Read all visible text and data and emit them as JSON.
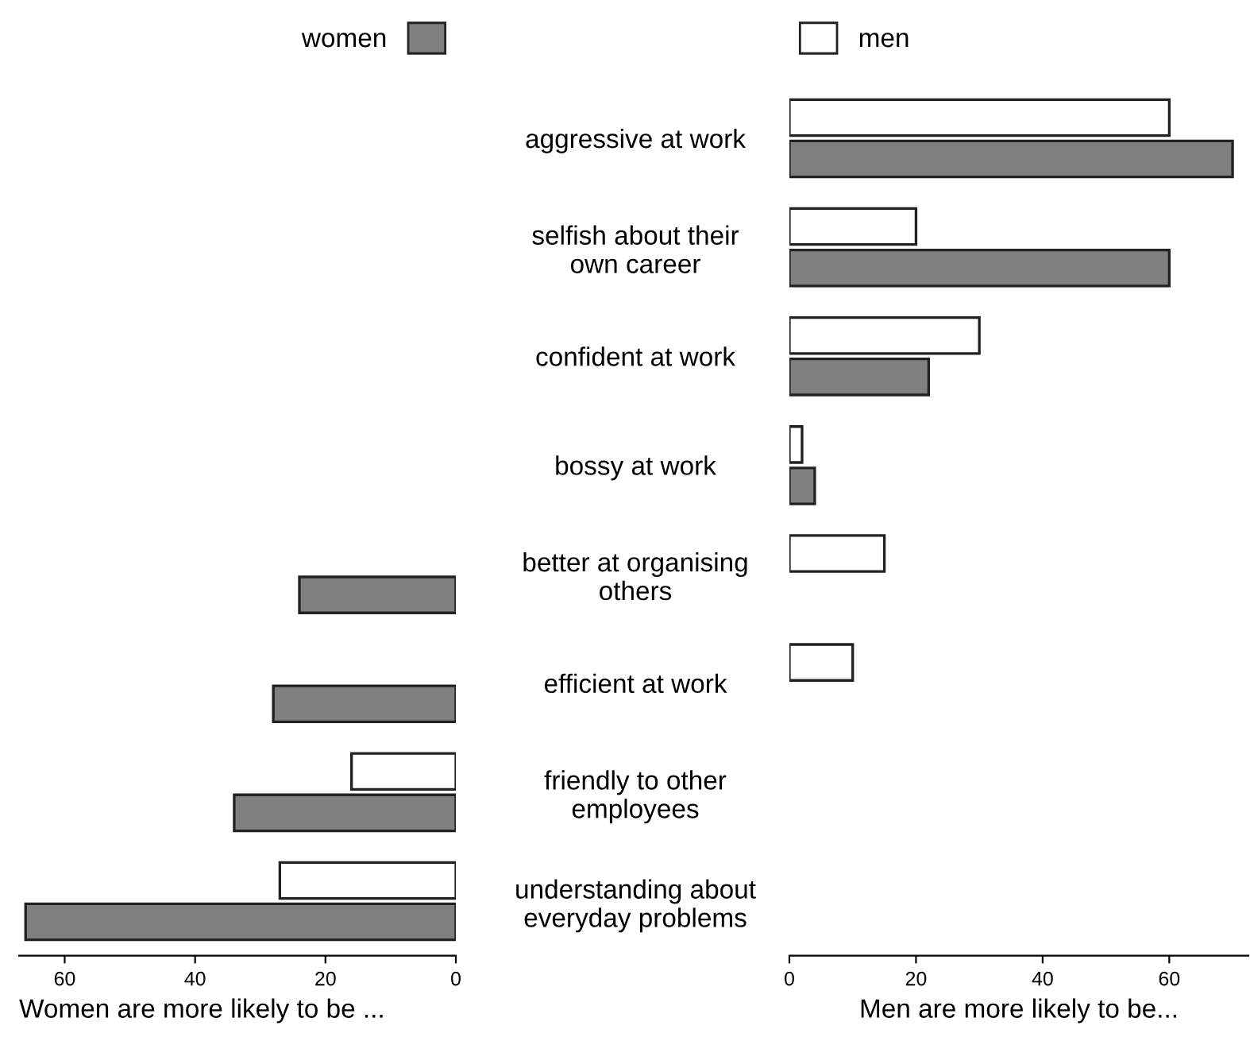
{
  "chart_data": [
    {
      "type": "bar",
      "orientation": "horizontal",
      "xlabel": "Women are more likely to be ...",
      "categories": [
        "aggressive at work",
        "selfish about their\nown career",
        "confident at work",
        "bossy at work",
        "better at organising\nothers",
        "efficient at work",
        "friendly to other\nemployees",
        "understanding about\neveryday problems"
      ],
      "series": [
        {
          "color": "#ffffff",
          "values": [
            null,
            null,
            null,
            null,
            null,
            null,
            16,
            27
          ]
        },
        {
          "name": "women",
          "color": "#808080",
          "values": [
            null,
            null,
            null,
            null,
            24,
            28,
            34,
            66
          ]
        }
      ],
      "xlim": [
        67,
        0
      ],
      "xticks": [
        60,
        40,
        20,
        0
      ],
      "legend": "top right",
      "grid": false
    },
    {
      "type": "bar",
      "orientation": "horizontal",
      "xlabel": "Men are more likely to be...",
      "categories": [
        null,
        null,
        null,
        null,
        null,
        null,
        null,
        null
      ],
      "series": [
        {
          "name": "men",
          "color": "#ffffff",
          "values": [
            60,
            20,
            30,
            2,
            15,
            10,
            null,
            null
          ]
        },
        {
          "color": "#808080",
          "values": [
            70,
            60,
            22,
            4,
            null,
            null,
            null,
            null
          ]
        }
      ],
      "xlim": [
        0,
        72.5
      ],
      "xticks": [
        0,
        20,
        40,
        60
      ],
      "legend": "top left",
      "tick_labels": "x",
      "grid": false
    }
  ]
}
